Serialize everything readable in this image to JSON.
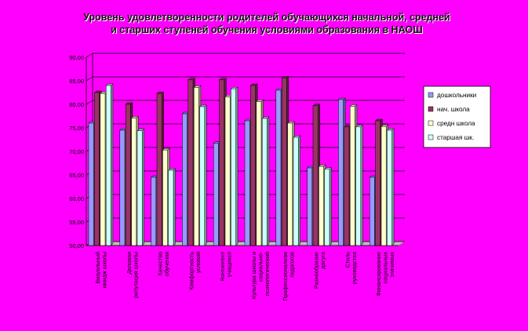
{
  "chart_data": {
    "type": "bar",
    "title_lines": [
      "Уровень удовлетворенности родителей обучающихся начальной, средней",
      "и старших ступеней обучения условиями образования в НАОШ"
    ],
    "ylim": [
      50,
      90
    ],
    "yticks": [
      "50,00",
      "55,00",
      "60,00",
      "65,00",
      "70,00",
      "75,00",
      "80,00",
      "85,00",
      "90,00"
    ],
    "grid": "major-horizontal",
    "legend_position": "right",
    "categories": [
      [
        "Визуальный",
        "имидж школы"
      ],
      [
        "Деловая",
        "репутация школы"
      ],
      [
        "Качество",
        "обучения"
      ],
      [
        "Комфортность",
        "условий"
      ],
      [
        "Контингент",
        "учащихся"
      ],
      [
        "Культура школы и",
        "социально-",
        "психологический"
      ],
      [
        "Профессионализм",
        "педагогов"
      ],
      [
        "Разнообразие",
        "досуга"
      ],
      [
        "Стиль",
        "руководства"
      ],
      [
        "Финансирование",
        "социальных",
        "значимых"
      ]
    ],
    "series": [
      {
        "name": "дошкольники",
        "color": "#9999ff",
        "values": [
          76.0,
          74.5,
          64.5,
          78.0,
          71.7,
          76.5,
          83.0,
          66.5,
          81.0,
          64.5
        ]
      },
      {
        "name": "нач. школа",
        "color": "#993366",
        "values": [
          82.5,
          80.0,
          82.3,
          85.2,
          85.2,
          84.0,
          85.6,
          79.7,
          75.2,
          76.5
        ]
      },
      {
        "name": "средн школа",
        "color": "#ffffcc",
        "values": [
          82.3,
          77.1,
          70.3,
          83.6,
          81.6,
          80.6,
          76.0,
          66.8,
          79.6,
          75.3
        ]
      },
      {
        "name": "старшая шк.",
        "color": "#ccffff",
        "values": [
          84.0,
          74.4,
          66.0,
          79.5,
          83.3,
          77.0,
          73.0,
          66.2,
          75.2,
          74.5
        ]
      }
    ]
  }
}
